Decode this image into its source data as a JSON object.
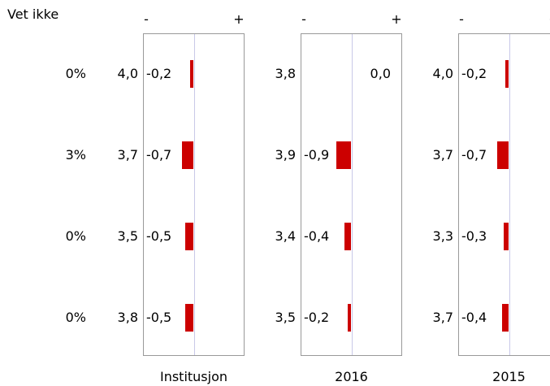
{
  "header_label": "Vet ikke",
  "sign_minus": "-",
  "sign_plus": "+",
  "vet_ikke": [
    "0%",
    "3%",
    "0%",
    "0%"
  ],
  "colors": {
    "bar": "#cc0000",
    "frame": "#999999",
    "zero_line": "#c8c8e8"
  },
  "chart_data": {
    "type": "bar",
    "orientation": "horizontal",
    "xlim": [
      -2,
      2
    ],
    "panels": [
      {
        "label": "Institusjon",
        "scores": [
          "4,0",
          "3,7",
          "3,5",
          "3,8"
        ],
        "diffs": [
          "-0,2",
          "-0,7",
          "-0,5",
          "-0,5"
        ],
        "values": [
          -0.2,
          -0.7,
          -0.5,
          -0.5
        ]
      },
      {
        "label": "2016",
        "scores": [
          "3,8",
          "3,9",
          "3,4",
          "3,5"
        ],
        "diffs": [
          "0,0",
          "-0,9",
          "-0,4",
          "-0,2"
        ],
        "values": [
          0.0,
          -0.9,
          -0.4,
          -0.2
        ]
      },
      {
        "label": "2015",
        "scores": [
          "4,0",
          "3,7",
          "3,3",
          "3,7"
        ],
        "diffs": [
          "-0,2",
          "-0,7",
          "-0,3",
          "-0,4"
        ],
        "values": [
          -0.2,
          -0.7,
          -0.3,
          -0.4
        ]
      }
    ]
  }
}
